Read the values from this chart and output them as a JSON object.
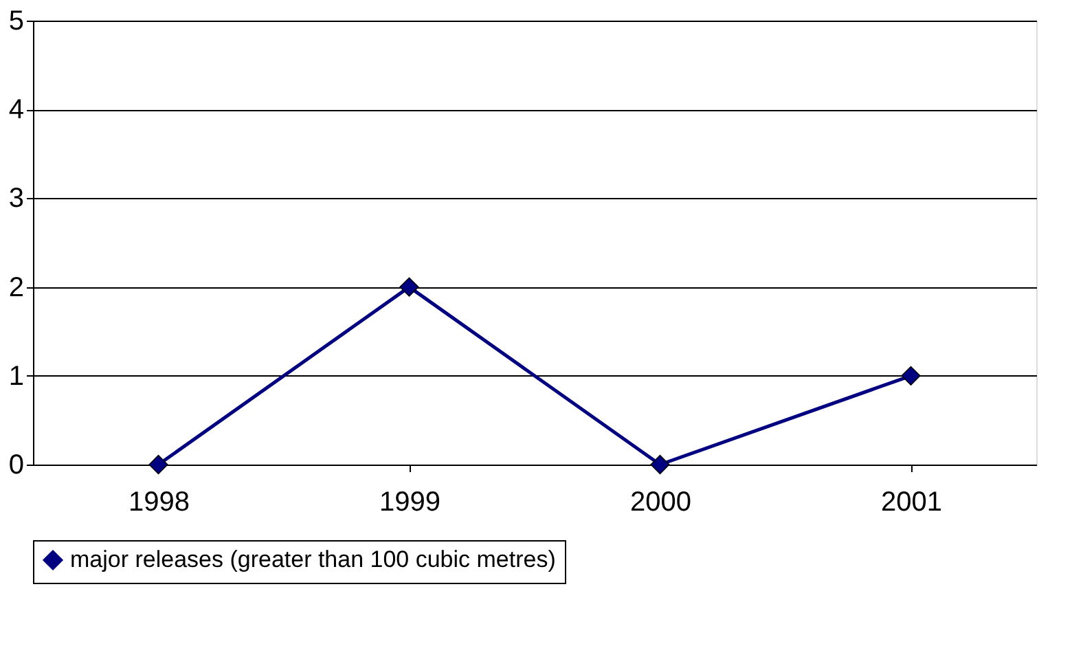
{
  "chart_data": {
    "type": "line",
    "categories": [
      "1998",
      "1999",
      "2000",
      "2001"
    ],
    "series": [
      {
        "name": "major releases (greater than 100 cubic metres)",
        "color": "#000080",
        "values": [
          0,
          2,
          0,
          1
        ]
      }
    ],
    "ylim": [
      0,
      5
    ],
    "yticks": [
      0,
      1,
      2,
      3,
      4,
      5
    ],
    "grid": "y",
    "legend": "bottom",
    "marker": "diamond",
    "line_style": "solid"
  }
}
